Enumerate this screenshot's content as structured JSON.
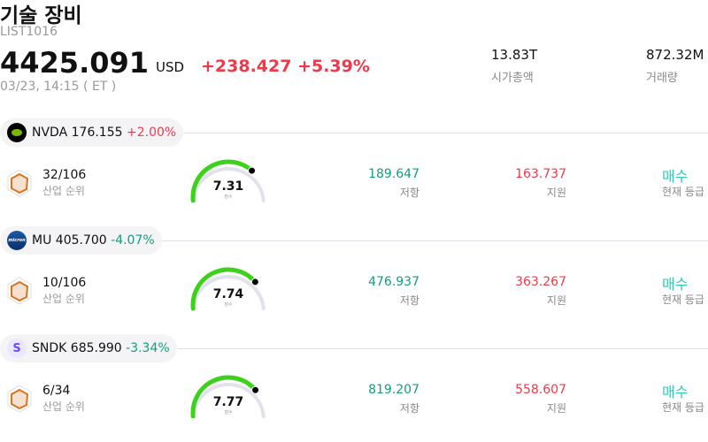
{
  "header": {
    "title": "기술 장비",
    "code": "LIST1016",
    "price": "4425.091",
    "currency": "USD",
    "change": "+238.427 +5.39%",
    "time": "03/23, 14:15 ( ET )",
    "market_cap": {
      "value": "13.83T",
      "label": "시가총액"
    },
    "volume": {
      "value": "872.32M",
      "label": "거래량"
    }
  },
  "colors": {
    "up": "#f0384b",
    "down": "#119e7e",
    "gauge": "#3cd11a",
    "grade": "#2ccbb4"
  },
  "stocks": [
    {
      "ticker": "NVDA",
      "price": "176.155",
      "change": "+2.00%",
      "dir": "up",
      "logo_icon": "nvidia-logo-icon",
      "logo_text": "",
      "rank": "32/106",
      "rank_label": "산업 순위",
      "score": 7.31,
      "score_text": "7.31",
      "score_label": "점수",
      "resistance": "189.647",
      "resistance_label": "저항",
      "support": "163.737",
      "support_label": "지원",
      "grade": "매수",
      "grade_label": "현재 등급"
    },
    {
      "ticker": "MU",
      "price": "405.700",
      "change": "-4.07%",
      "dir": "down",
      "logo_icon": "micron-logo-icon",
      "logo_text": "",
      "rank": "10/106",
      "rank_label": "산업 순위",
      "score": 7.74,
      "score_text": "7.74",
      "score_label": "점수",
      "resistance": "476.937",
      "resistance_label": "저항",
      "support": "363.267",
      "support_label": "지원",
      "grade": "매수",
      "grade_label": "현재 등급"
    },
    {
      "ticker": "SNDK",
      "price": "685.990",
      "change": "-3.34%",
      "dir": "down",
      "logo_icon": "sandisk-logo-icon",
      "logo_text": "S",
      "rank": "6/34",
      "rank_label": "산업 순위",
      "score": 7.77,
      "score_text": "7.77",
      "score_label": "점수",
      "resistance": "819.207",
      "resistance_label": "저항",
      "support": "558.607",
      "support_label": "지원",
      "grade": "매수",
      "grade_label": "현재 등급"
    }
  ]
}
